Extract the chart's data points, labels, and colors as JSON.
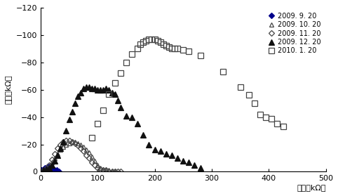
{
  "series": {
    "2009.9.20": {
      "x": [
        2,
        5,
        8,
        12,
        15,
        18,
        22,
        25,
        28,
        32
      ],
      "y": [
        -1,
        -2,
        -3,
        -4,
        -4,
        -3,
        -2,
        -1,
        -1,
        0
      ],
      "marker": "D",
      "filled": true,
      "color": "#00008B",
      "ms": 4,
      "label": "2009. 9. 20"
    },
    "2009.10.20": {
      "x": [
        5,
        10,
        15,
        20,
        25,
        30,
        35,
        40,
        45,
        50,
        55,
        60,
        65,
        70,
        75,
        80,
        85,
        90,
        95,
        100,
        105,
        110,
        115,
        120,
        125,
        130
      ],
      "y": [
        -1,
        -2,
        -4,
        -7,
        -10,
        -13,
        -16,
        -18,
        -20,
        -21,
        -22,
        -22,
        -21,
        -20,
        -18,
        -16,
        -14,
        -11,
        -8,
        -5,
        -3,
        -2,
        -1,
        -1,
        0,
        0
      ],
      "marker": "^",
      "filled": false,
      "color": "#444444",
      "ms": 5,
      "label": "2009. 10. 20"
    },
    "2009.11.20": {
      "x": [
        5,
        10,
        15,
        20,
        25,
        30,
        35,
        40,
        45,
        50,
        55,
        60,
        65,
        70,
        75,
        80,
        85,
        90,
        95,
        100,
        105,
        110,
        115,
        120,
        125,
        130,
        135,
        140
      ],
      "y": [
        -1,
        -3,
        -5,
        -9,
        -13,
        -17,
        -20,
        -22,
        -23,
        -23,
        -22,
        -21,
        -19,
        -17,
        -15,
        -12,
        -10,
        -7,
        -5,
        -3,
        -2,
        -1,
        -1,
        0,
        0,
        0,
        0,
        0
      ],
      "marker": "D",
      "filled": false,
      "color": "#444444",
      "ms": 4,
      "label": "2009. 11. 20"
    },
    "2009.12.20": {
      "x": [
        5,
        10,
        15,
        20,
        25,
        30,
        35,
        40,
        45,
        50,
        55,
        60,
        65,
        70,
        75,
        80,
        85,
        90,
        95,
        100,
        105,
        110,
        115,
        120,
        125,
        130,
        135,
        140,
        150,
        160,
        170,
        180,
        190,
        200,
        210,
        220,
        230,
        240,
        250,
        260,
        270,
        280
      ],
      "y": [
        -1,
        -2,
        -3,
        -5,
        -8,
        -12,
        -17,
        -22,
        -30,
        -38,
        -44,
        -50,
        -55,
        -58,
        -61,
        -62,
        -62,
        -61,
        -61,
        -60,
        -60,
        -60,
        -61,
        -60,
        -58,
        -57,
        -52,
        -47,
        -41,
        -40,
        -35,
        -27,
        -20,
        -16,
        -15,
        -13,
        -12,
        -10,
        -8,
        -7,
        -5,
        -3
      ],
      "marker": "^",
      "filled": true,
      "color": "#111111",
      "ms": 6,
      "label": "2009. 12. 20"
    },
    "2010.1.20": {
      "x": [
        90,
        100,
        110,
        120,
        130,
        140,
        150,
        160,
        170,
        175,
        180,
        185,
        190,
        195,
        200,
        205,
        210,
        215,
        220,
        225,
        230,
        235,
        240,
        250,
        260,
        280,
        320,
        350,
        365,
        375,
        385,
        395,
        405,
        415,
        425
      ],
      "y": [
        -25,
        -35,
        -45,
        -57,
        -65,
        -72,
        -80,
        -86,
        -90,
        -93,
        -95,
        -96,
        -97,
        -97,
        -97,
        -96,
        -95,
        -93,
        -92,
        -91,
        -90,
        -90,
        -90,
        -89,
        -88,
        -85,
        -73,
        -62,
        -56,
        -50,
        -42,
        -40,
        -39,
        -35,
        -33
      ],
      "marker": "s",
      "filled": false,
      "color": "#444444",
      "ms": 6,
      "label": "2010. 1. 20"
    }
  },
  "xlabel": "电阳（kΩ）",
  "ylabel": "电抗（kΩ）",
  "xlim": [
    0,
    500
  ],
  "ylim": [
    -120,
    0
  ],
  "xticks": [
    0,
    100,
    200,
    300,
    400,
    500
  ],
  "yticks": [
    -120,
    -100,
    -80,
    -60,
    -40,
    -20,
    0
  ],
  "background_color": "#ffffff",
  "legend_order": [
    "2009.9.20",
    "2009.10.20",
    "2009.11.20",
    "2009.12.20",
    "2010.1.20"
  ]
}
